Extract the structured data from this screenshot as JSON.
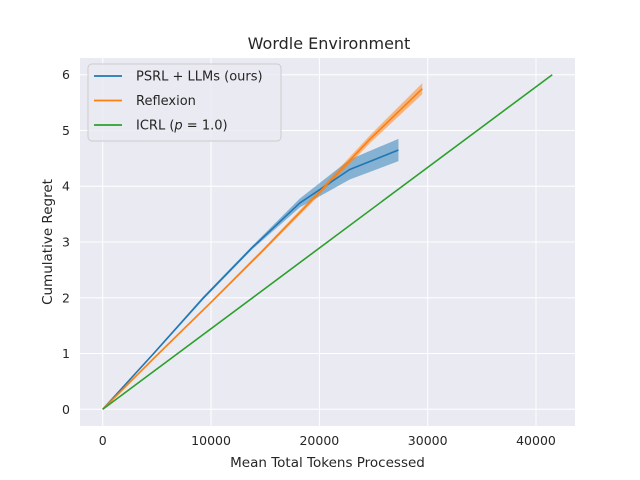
{
  "chart_data": {
    "type": "line",
    "title": "Wordle Environment",
    "xlabel": "Mean Total Tokens Processed",
    "ylabel": "Cumulative Regret",
    "xlim": [
      -2100,
      43600
    ],
    "ylim": [
      -0.3,
      6.3
    ],
    "xticks": [
      0,
      10000,
      20000,
      30000,
      40000
    ],
    "yticks": [
      0,
      1,
      2,
      3,
      4,
      5,
      6
    ],
    "xtick_labels": [
      "0",
      "10000",
      "20000",
      "30000",
      "40000"
    ],
    "ytick_labels": [
      "0",
      "1",
      "2",
      "3",
      "4",
      "5",
      "6"
    ],
    "grid": true,
    "legend_position": "top-left",
    "background_color": "#eaeaf2",
    "series": [
      {
        "name": "PSRL + LLMs (ours)",
        "color": "#1f77b4",
        "x": [
          0,
          4700,
          9300,
          13800,
          18200,
          22800,
          27300
        ],
        "y": [
          0,
          1.0,
          2.0,
          2.9,
          3.7,
          4.3,
          4.65
        ],
        "band_lower": [
          0,
          0.98,
          1.97,
          2.87,
          3.62,
          4.12,
          4.45
        ],
        "band_upper": [
          0,
          1.02,
          2.03,
          2.93,
          3.78,
          4.48,
          4.85
        ]
      },
      {
        "name": "Reflexion",
        "color": "#ff7f0e",
        "x": [
          0,
          4900,
          9900,
          14800,
          19800,
          24700,
          29500
        ],
        "y": [
          0,
          0.95,
          1.9,
          2.85,
          3.85,
          4.85,
          5.75
        ],
        "band_lower": [
          0,
          0.93,
          1.88,
          2.82,
          3.8,
          4.78,
          5.65
        ],
        "band_upper": [
          0,
          0.97,
          1.92,
          2.88,
          3.9,
          4.92,
          5.85
        ]
      },
      {
        "name": "ICRL (p = 1.0)",
        "name_parts": {
          "prefix": "ICRL (",
          "var": "p",
          "suffix": " = 1.0)"
        },
        "color": "#2ca02c",
        "x": [
          0,
          41500
        ],
        "y": [
          0,
          6.0
        ]
      }
    ]
  }
}
